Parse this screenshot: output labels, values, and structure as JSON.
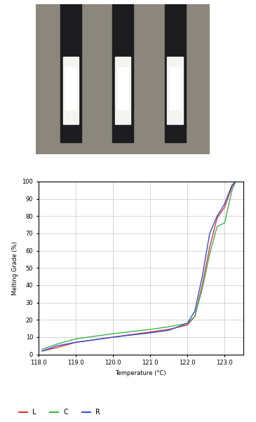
{
  "chart_data": {
    "type": "line",
    "x_label": "Temperature (°C)",
    "y_label": "Melting Grade (%)",
    "x": [
      118.1,
      118.5,
      119.0,
      120.0,
      121.0,
      121.5,
      122.0,
      122.2,
      122.4,
      122.6,
      122.8,
      123.0,
      123.2,
      123.3,
      123.5
    ],
    "series": [
      {
        "name": "L",
        "color": "#e8312a",
        "values": [
          2,
          4,
          7,
          10,
          13,
          14.5,
          17,
          22,
          40,
          62,
          79,
          85,
          97,
          100,
          100
        ]
      },
      {
        "name": "C",
        "color": "#3cb44b",
        "values": [
          3,
          6,
          9,
          12,
          14.5,
          16,
          18,
          22,
          38,
          58,
          74,
          76,
          95,
          100,
          100
        ]
      },
      {
        "name": "R",
        "color": "#2f4fd8",
        "values": [
          2,
          5,
          7,
          10,
          12.5,
          14,
          18,
          25,
          45,
          70,
          80,
          87,
          98,
          100,
          100
        ]
      }
    ],
    "xlim": [
      118.0,
      123.5
    ],
    "xticks": [
      118.0,
      119.0,
      120.0,
      121.0,
      122.0,
      123.0
    ],
    "ylim": [
      0,
      100
    ],
    "yticks": [
      0,
      10,
      20,
      30,
      40,
      50,
      60,
      70,
      80,
      90,
      100
    ],
    "grid": true,
    "legend": "lower left"
  }
}
